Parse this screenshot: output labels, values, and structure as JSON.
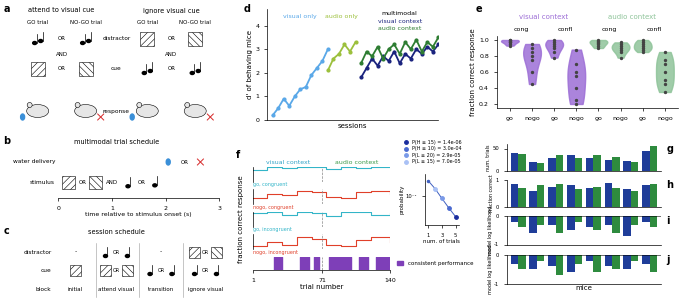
{
  "chart_data": [
    {
      "panel": "d",
      "type": "line",
      "ylabel": "d' of behaving mice",
      "xlabel": "sessions",
      "xlim": [
        0,
        31
      ],
      "ylim": [
        0,
        4.7
      ],
      "yticks": [
        0,
        1,
        2,
        3,
        4
      ],
      "tick_labels": "y",
      "group_label": "multimodal",
      "series": [
        {
          "name": "visual only",
          "color": "#5aa8e8",
          "marker": "o",
          "x": [
            1,
            2,
            3,
            4,
            5,
            6,
            7,
            8,
            9,
            10,
            11
          ],
          "values": [
            0.2,
            0.5,
            0.9,
            0.6,
            1.0,
            1.3,
            1.4,
            1.9,
            2.2,
            2.5,
            3.0
          ]
        },
        {
          "name": "audio only",
          "color": "#9cc03c",
          "marker": "o",
          "x": [
            11,
            12,
            13,
            14,
            15,
            16
          ],
          "values": [
            2.1,
            2.6,
            2.8,
            3.2,
            2.9,
            3.3
          ]
        },
        {
          "name": "visual context",
          "color": "#1a237e",
          "marker": "o",
          "x": [
            17,
            18,
            19,
            20,
            21,
            22,
            23,
            24,
            25,
            26,
            27,
            28,
            29,
            30,
            31
          ],
          "values": [
            1.8,
            2.2,
            2.6,
            2.3,
            2.7,
            2.5,
            2.9,
            2.4,
            2.8,
            2.6,
            3.0,
            2.8,
            3.1,
            2.9,
            3.2
          ]
        },
        {
          "name": "audio context",
          "color": "#2e7d32",
          "marker": "o",
          "x": [
            17,
            18,
            19,
            20,
            21,
            22,
            23,
            24,
            25,
            26,
            27,
            28,
            29,
            30,
            31
          ],
          "values": [
            2.4,
            2.9,
            2.7,
            3.1,
            2.6,
            3.0,
            3.2,
            2.8,
            3.3,
            3.0,
            3.4,
            2.9,
            3.3,
            3.1,
            3.5
          ]
        }
      ]
    },
    {
      "panel": "e",
      "type": "violin",
      "ylabel": "fraction correct response",
      "categories": [
        "go",
        "nogo",
        "go",
        "nogo",
        "go",
        "nogo",
        "go",
        "nogo"
      ],
      "group_labels": [
        "cong",
        "confl",
        "cong",
        "confl"
      ],
      "context_labels": [
        "visual context",
        "audio context"
      ],
      "colors": [
        "#9d6fd6",
        "#9d6fd6",
        "#9d6fd6",
        "#9d6fd6",
        "#8fc49a",
        "#8fc49a",
        "#8fc49a",
        "#8fc49a"
      ],
      "values": [
        [
          1.0,
          0.98,
          0.97,
          0.95,
          1.0,
          0.93,
          0.99
        ],
        [
          0.95,
          0.9,
          0.8,
          0.75,
          0.6,
          0.45,
          0.85
        ],
        [
          0.98,
          0.95,
          1.0,
          0.9,
          0.85,
          0.78,
          0.93
        ],
        [
          0.88,
          0.7,
          0.55,
          0.4,
          0.25,
          0.2,
          0.6
        ],
        [
          1.0,
          0.98,
          0.96,
          0.92,
          0.95,
          0.99,
          0.9
        ],
        [
          0.97,
          0.92,
          0.85,
          0.88,
          0.78,
          0.95,
          0.9
        ],
        [
          1.0,
          0.95,
          0.9,
          0.85,
          0.97,
          0.88,
          0.92
        ],
        [
          0.85,
          0.7,
          0.6,
          0.5,
          0.35,
          0.75,
          0.45
        ]
      ],
      "ylim": [
        0.15,
        1.05
      ],
      "yticks": [
        0.2,
        0.4,
        0.6,
        0.8,
        1.0
      ]
    },
    {
      "panel": "f",
      "type": "step",
      "ylabel": "fraction correct response",
      "xlabel": "trial number",
      "xlim": [
        1,
        140
      ],
      "xticks": [
        1,
        71,
        140
      ],
      "ylim": [
        0,
        1
      ],
      "tick_labels": "x",
      "context_switch": 71,
      "contexts": [
        {
          "name": "visual context",
          "color": "#33a3c8"
        },
        {
          "name": "audio context",
          "color": "#3c9a4a"
        }
      ],
      "series": [
        {
          "name": "go, congruent",
          "color": "#33b5c8",
          "x": [
            1,
            15,
            30,
            45,
            60,
            75,
            90,
            105,
            120,
            140
          ],
          "values": [
            0.8,
            1.0,
            0.9,
            1.0,
            1.0,
            0.85,
            1.0,
            0.9,
            1.0,
            1.0
          ]
        },
        {
          "name": "nogo, congruent",
          "color": "#e0402a",
          "x": [
            1,
            15,
            30,
            45,
            60,
            75,
            90,
            105,
            120,
            140
          ],
          "values": [
            0.4,
            0.7,
            0.6,
            0.9,
            0.8,
            0.5,
            0.4,
            0.8,
            0.9,
            0.7
          ]
        },
        {
          "name": "go, incongruent",
          "color": "#33b5c8",
          "x": [
            1,
            15,
            30,
            45,
            60,
            75,
            90,
            105,
            120,
            140
          ],
          "values": [
            0.9,
            1.0,
            0.8,
            1.0,
            0.9,
            0.7,
            1.0,
            1.0,
            0.8,
            0.9
          ]
        },
        {
          "name": "nogo, incongruent",
          "color": "#e0402a",
          "x": [
            1,
            15,
            30,
            45,
            60,
            75,
            90,
            105,
            120,
            140
          ],
          "values": [
            0.2,
            0.5,
            0.3,
            0.8,
            0.7,
            0.3,
            0.2,
            0.6,
            0.8,
            0.5
          ]
        }
      ],
      "consistent": {
        "name": "consistent performance",
        "color": "#7e3fb8",
        "segments": [
          [
            22,
            30
          ],
          [
            48,
            57
          ],
          [
            62,
            68
          ],
          [
            78,
            100
          ],
          [
            108,
            117
          ],
          [
            125,
            140
          ]
        ]
      },
      "legend": "upper left"
    },
    {
      "type": "line",
      "log": "y",
      "xlabel": "num. of trials",
      "ylabel": "probability",
      "x": [
        1,
        2,
        3,
        4,
        5
      ],
      "values": [
        0.5,
        0.22,
        0.08,
        0.03,
        0.012
      ],
      "color": "#4060c0",
      "marker": "o",
      "xlim": [
        0.5,
        5.5
      ],
      "xticks": [
        1,
        3,
        5
      ],
      "ylim": [
        0.005,
        1
      ],
      "yticks": [
        {
          "value": 0.1,
          "label": "10⁻¹"
        }
      ],
      "series": [
        {
          "name": "P(H ≥ 15) = 1.4e-06",
          "color": "#1a2d9e",
          "x": [
            5
          ],
          "values": [
            0.012
          ]
        },
        {
          "name": "P(H ≥ 10) = 3.0e-04",
          "color": "#4a6ad0",
          "x": [
            4
          ],
          "values": [
            0.03
          ]
        },
        {
          "name": "P(L ≥ 20) = 2.9e-05",
          "color": "#7a9ae8",
          "x": [
            3
          ],
          "values": [
            0.08
          ]
        },
        {
          "name": "P(L ≥ 15) = 7.0e-05",
          "color": "#a9c1f5",
          "x": [
            2
          ],
          "values": [
            0.22
          ]
        }
      ],
      "legend": "upper left"
    },
    {
      "panel": "g",
      "type": "bar",
      "ylabel": "num. trials",
      "categories": [
        null,
        null,
        null,
        null,
        null,
        null,
        null,
        null
      ],
      "series": [
        {
          "color": "#1f3d99",
          "values": [
            40,
            20,
            30,
            35,
            28,
            25,
            22,
            45
          ]
        },
        {
          "color": "#2e8b3e",
          "values": [
            38,
            18,
            35,
            30,
            35,
            32,
            20,
            55
          ]
        }
      ],
      "ylim": [
        0,
        60
      ],
      "yticks": [
        0,
        50
      ],
      "tick_labels": "y"
    },
    {
      "panel": "h",
      "type": "bar",
      "ylabel": "fraction correct",
      "categories": [
        null,
        null,
        null,
        null,
        null,
        null,
        null,
        null
      ],
      "series": [
        {
          "color": "#1f3d99",
          "values": [
            0.85,
            0.6,
            0.75,
            0.8,
            0.7,
            0.9,
            0.65,
            0.8
          ]
        },
        {
          "color": "#2e8b3e",
          "values": [
            0.7,
            0.8,
            0.85,
            0.65,
            0.75,
            0.7,
            0.6,
            0.85
          ]
        }
      ],
      "ylim": [
        0,
        1
      ],
      "yticks": [
        0,
        1
      ],
      "tick_labels": "y"
    },
    {
      "panel": "i",
      "type": "bar",
      "ylabel": "model log likelihood",
      "categories": [
        null,
        null,
        null,
        null,
        null,
        null,
        null,
        null
      ],
      "series": [
        {
          "color": "#1f3d99",
          "values": [
            -0.2,
            -0.6,
            -0.3,
            -0.5,
            -0.4,
            -0.3,
            -0.7,
            -0.2
          ]
        },
        {
          "color": "#2e8b3e",
          "values": [
            -0.4,
            -0.3,
            -0.6,
            -0.2,
            -0.5,
            -0.6,
            -0.3,
            -0.4
          ]
        }
      ],
      "ylim": [
        -1,
        0
      ],
      "yticks": [
        -1,
        0
      ],
      "tick_labels": "y"
    },
    {
      "panel": "j",
      "type": "bar",
      "ylabel": "model log likelihood",
      "xlabel": "mice",
      "categories": [
        null,
        null,
        null,
        null,
        null,
        null,
        null,
        null
      ],
      "series": [
        {
          "color": "#1f3d99",
          "values": [
            -0.3,
            -0.5,
            -0.4,
            -0.6,
            -0.2,
            -0.4,
            -0.5,
            -0.3
          ]
        },
        {
          "color": "#2e8b3e",
          "values": [
            -0.5,
            -0.2,
            -0.7,
            -0.3,
            -0.6,
            -0.5,
            -0.2,
            -0.6
          ]
        }
      ],
      "ylim": [
        -1,
        0
      ],
      "yticks": [
        -1,
        0
      ],
      "tick_labels": "y"
    }
  ],
  "diagram": {
    "a": {
      "label": "a",
      "attend": "attend to visual cue",
      "ignore": "ignore visual cue",
      "go": "GO trial",
      "nogo": "NO-GO trial",
      "or": "OR",
      "and": "AND",
      "rows": [
        "distractor",
        "cue",
        "response"
      ]
    },
    "b": {
      "label": "b",
      "title": "multimodal trial schedule",
      "rows": [
        "water delivery",
        "stimulus"
      ],
      "or": "OR",
      "and": "AND",
      "xlabel": "time relative to stimulus onset (s)",
      "xlim": [
        0,
        3
      ],
      "xticks": [
        0,
        1,
        2,
        3
      ]
    },
    "c": {
      "label": "c",
      "title": "session schedule",
      "rows": [
        "distractor",
        "cue",
        "block"
      ],
      "none": "-",
      "or": "OR",
      "blocks": [
        "initial",
        "attend visual",
        "transition",
        "ignore visual"
      ]
    }
  }
}
